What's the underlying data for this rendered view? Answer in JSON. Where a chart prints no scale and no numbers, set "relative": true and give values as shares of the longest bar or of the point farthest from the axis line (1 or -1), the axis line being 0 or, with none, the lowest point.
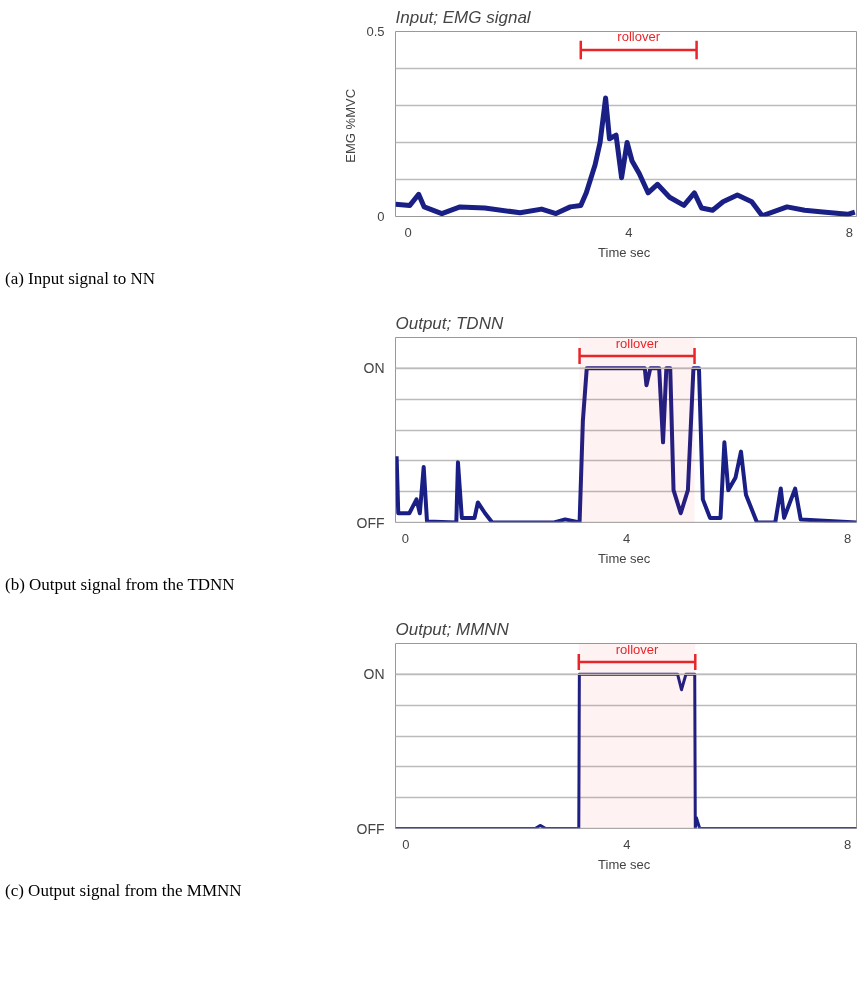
{
  "chart_data": [
    {
      "type": "line",
      "title": "Input; EMG signal",
      "xlabel": "Time  sec",
      "ylabel": "EMG  %MVC",
      "x": [
        -0.23,
        0.03,
        0.19,
        0.29,
        0.61,
        0.94,
        1.39,
        2.03,
        2.42,
        2.68,
        2.94,
        3.13,
        3.23,
        3.39,
        3.48,
        3.58,
        3.65,
        3.77,
        3.87,
        3.97,
        4.06,
        4.19,
        4.35,
        4.52,
        4.74,
        5.0,
        5.19,
        5.32,
        5.52,
        5.71,
        5.97,
        6.23,
        6.42,
        6.87,
        7.19,
        7.52,
        7.97,
        8.1
      ],
      "series": [
        {
          "name": "rollover",
          "color": "#e8262a",
          "x": [
            3.13,
            5.23
          ],
          "values": [
            0.45,
            0.45
          ],
          "errors": [
            0.025,
            0.025
          ]
        },
        {
          "color": "#1a1f85",
          "values": [
            0.033,
            0.03,
            0.06,
            0.026,
            0.008,
            0.026,
            0.023,
            0.01,
            0.02,
            0.008,
            0.026,
            0.03,
            0.064,
            0.14,
            0.2,
            0.32,
            0.21,
            0.22,
            0.105,
            0.2,
            0.15,
            0.116,
            0.064,
            0.087,
            0.052,
            0.03,
            0.064,
            0.023,
            0.017,
            0.04,
            0.058,
            0.04,
            0.002,
            0.026,
            0.017,
            0.012,
            0.006,
            0.012
          ]
        }
      ],
      "xlim": [
        -0.23,
        8.13
      ],
      "ylim": [
        0,
        0.5
      ],
      "xticks": [
        0,
        4,
        8
      ],
      "yticks": [
        0,
        {
          "value": 0.1,
          "label": null
        },
        {
          "value": 0.2,
          "label": null
        },
        {
          "value": 0.3,
          "label": null
        },
        {
          "value": 0.4,
          "label": null
        },
        0.5
      ],
      "grid": "y",
      "annotations": [
        "(a) Input signal to NN"
      ]
    },
    {
      "type": "line",
      "title": "Output; TDNN",
      "xlabel": "Time  sec",
      "relative": true,
      "x": [
        -0.16,
        -0.13,
        0.07,
        0.2,
        0.26,
        0.33,
        0.39,
        0.92,
        0.95,
        1.02,
        1.25,
        1.31,
        1.44,
        1.57,
        2.69,
        2.89,
        3.15,
        3.21,
        3.28,
        4.33,
        4.36,
        4.43,
        4.59,
        4.66,
        4.72,
        4.79,
        4.85,
        4.98,
        5.11,
        5.21,
        5.31,
        5.38,
        5.51,
        5.7,
        5.77,
        5.84,
        5.97,
        6.07,
        6.16,
        6.36,
        6.69,
        6.79,
        6.85,
        7.05,
        7.15,
        8.16
      ],
      "series": [
        {
          "color": "#1a1f85",
          "values": [
            0.43,
            0.06,
            0.06,
            0.15,
            0.06,
            0.36,
            0.006,
            0,
            0.39,
            0.03,
            0.03,
            0.13,
            0.06,
            0,
            0,
            0.02,
            0,
            0.66,
            1.0,
            1.0,
            0.89,
            1.0,
            1.0,
            0.52,
            1.0,
            1.0,
            0.21,
            0.06,
            0.21,
            1.0,
            1.0,
            0.15,
            0.03,
            0.03,
            0.52,
            0.21,
            0.29,
            0.46,
            0.18,
            0,
            0,
            0.22,
            0.03,
            0.22,
            0.02,
            0
          ]
        }
      ],
      "xlim": [
        -0.18,
        8.16
      ],
      "xticks": [
        0,
        4,
        8
      ],
      "grid": "y",
      "bands": [
        {
          "axis": "x",
          "from": 3.15,
          "to": 5.23,
          "label": "rollover",
          "color": "#e8262a"
        }
      ],
      "ref_lines": [
        {
          "axis": "y",
          "value": 1,
          "label": "ON",
          "color": "#bbbbbb"
        },
        {
          "axis": "y",
          "value": 0,
          "label": "OFF",
          "color": "#bbbbbb"
        }
      ],
      "annotations": [
        "(b) Output signal from the TDNN"
      ]
    },
    {
      "type": "line",
      "title": "Output; MMNN",
      "xlabel": "Time  sec",
      "relative": true,
      "x": [
        -0.19,
        2.34,
        2.43,
        2.53,
        3.13,
        3.14,
        4.92,
        4.99,
        5.07,
        5.23,
        5.24,
        5.26,
        5.32,
        8.16
      ],
      "series": [
        {
          "color": "#1a1f85",
          "values": [
            0,
            0,
            0.02,
            0,
            0,
            1.0,
            1.0,
            0.9,
            1.0,
            1.0,
            0,
            0.07,
            0,
            0
          ]
        }
      ],
      "xlim": [
        -0.19,
        8.16
      ],
      "xticks": [
        0,
        4,
        8
      ],
      "grid": "y",
      "bands": [
        {
          "axis": "x",
          "from": 3.13,
          "to": 5.24,
          "label": "rollover",
          "color": "#e8262a"
        }
      ],
      "ref_lines": [
        {
          "axis": "y",
          "value": 1,
          "label": "ON",
          "color": "#bbbbbb"
        },
        {
          "axis": "y",
          "value": 0,
          "label": "OFF",
          "color": "#bbbbbb"
        }
      ],
      "annotations": [
        "(c) Output signal from the MMNN"
      ]
    }
  ]
}
